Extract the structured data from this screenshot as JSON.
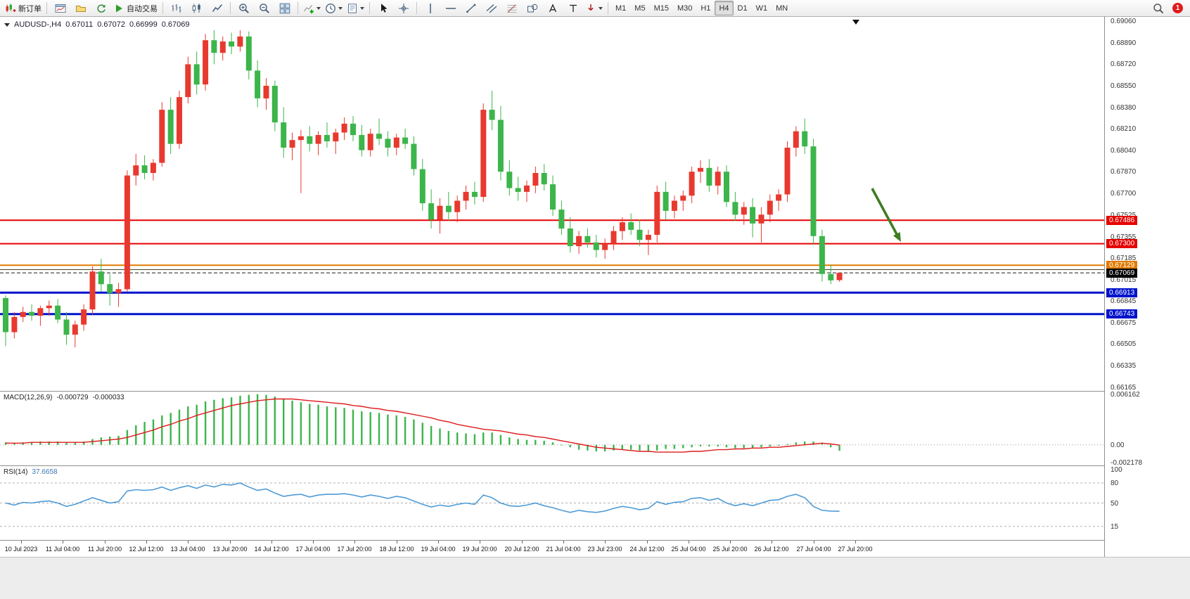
{
  "toolbar": {
    "groups": [
      {
        "buttons": [
          {
            "name": "new-order",
            "icon": "new-order",
            "label": "新订单"
          }
        ]
      },
      {
        "buttons": [
          {
            "name": "new-chart",
            "icon": "chart-window"
          },
          {
            "name": "profiles",
            "icon": "profile"
          },
          {
            "name": "refresh",
            "icon": "refresh"
          },
          {
            "name": "autotrade",
            "icon": "autotrade",
            "label": "自动交易"
          }
        ]
      },
      {
        "buttons": [
          {
            "name": "bar-chart",
            "icon": "bars"
          },
          {
            "name": "candle-chart",
            "icon": "candles"
          },
          {
            "name": "line-chart",
            "icon": "line-chart"
          }
        ]
      },
      {
        "buttons": [
          {
            "name": "zoom-in",
            "icon": "zoom-in"
          },
          {
            "name": "zoom-out",
            "icon": "zoom-out"
          },
          {
            "name": "tile-windows",
            "icon": "tile"
          }
        ]
      },
      {
        "buttons": [
          {
            "name": "indicators",
            "icon": "indicators",
            "caret": true
          },
          {
            "name": "periods",
            "icon": "clock",
            "caret": true
          },
          {
            "name": "templates",
            "icon": "template",
            "caret": true
          }
        ]
      },
      {
        "buttons": [
          {
            "name": "cursor",
            "icon": "cursor"
          },
          {
            "name": "crosshair",
            "icon": "crosshair"
          }
        ]
      },
      {
        "buttons": [
          {
            "name": "vertical-line",
            "icon": "vline"
          },
          {
            "name": "horizontal-line",
            "icon": "hline"
          },
          {
            "name": "trendline",
            "icon": "trendline"
          },
          {
            "name": "equidistant-channel",
            "icon": "channel"
          },
          {
            "name": "fibonacci",
            "icon": "fibo"
          },
          {
            "name": "shapes",
            "icon": "shapes"
          },
          {
            "name": "text",
            "icon": "text-a"
          },
          {
            "name": "text-label",
            "icon": "label-t"
          },
          {
            "name": "arrows",
            "icon": "arrows-tool",
            "caret": true
          }
        ]
      }
    ],
    "timeframes": [
      {
        "label": "M1"
      },
      {
        "label": "M5"
      },
      {
        "label": "M15"
      },
      {
        "label": "M30"
      },
      {
        "label": "H1"
      },
      {
        "label": "H4",
        "active": true
      },
      {
        "label": "D1"
      },
      {
        "label": "W1"
      },
      {
        "label": "MN"
      }
    ],
    "right": [
      {
        "name": "search",
        "icon": "search"
      },
      {
        "name": "alerts",
        "badge": "1"
      }
    ]
  },
  "chart": {
    "symbol_period": "AUDUSD-,H4",
    "open": "0.67011",
    "high": "0.67072",
    "low": "0.66999",
    "close": "0.67069",
    "price_axis_labels": [
      "0.69060",
      "0.68890",
      "0.68720",
      "0.68550",
      "0.68380",
      "0.68210",
      "0.68040",
      "0.67870",
      "0.67700",
      "0.67525",
      "0.67355",
      "0.67185",
      "0.67015",
      "0.66845",
      "0.66675",
      "0.66505",
      "0.66335",
      "0.66165"
    ],
    "hlines": [
      {
        "value": 0.67486,
        "badge": "0.67486",
        "color": "#e60000",
        "width": 2,
        "dash": false
      },
      {
        "value": 0.673,
        "badge": "0.67300",
        "color": "#e60000",
        "width": 2,
        "dash": false
      },
      {
        "value": 0.67129,
        "badge": "0.67129",
        "color": "#e07b00",
        "width": 2,
        "dash": false
      },
      {
        "value": 0.67095,
        "badge": null,
        "color": "#44442a",
        "width": 1,
        "dash": false
      },
      {
        "value": 0.67069,
        "badge": "0.67069",
        "color": "#1a1a1a",
        "width": 1,
        "dash": true
      },
      {
        "value": 0.66913,
        "badge": "0.66913",
        "color": "#0013cc",
        "width": 3,
        "dash": false
      },
      {
        "value": 0.66743,
        "badge": "0.66743",
        "color": "#0013cc",
        "width": 3,
        "dash": false
      }
    ],
    "arrow_color": "#3f7d23"
  },
  "chart_data": {
    "type": "candlestick",
    "symbol": "AUDUSD",
    "period": "H4",
    "y_range": [
      0.66135,
      0.69095
    ],
    "bull_color": "#e8392f",
    "bear_color": "#3cb54a",
    "time_labels": [
      "10 Jul 2023",
      "11 Jul 04:00",
      "11 Jul 20:00",
      "12 Jul 12:00",
      "13 Jul 04:00",
      "13 Jul 20:00",
      "14 Jul 12:00",
      "17 Jul 04:00",
      "17 Jul 20:00",
      "18 Jul 12:00",
      "19 Jul 04:00",
      "19 Jul 20:00",
      "20 Jul 12:00",
      "21 Jul 04:00",
      "23 Jul 23:00",
      "24 Jul 12:00",
      "25 Jul 04:00",
      "25 Jul 20:00",
      "26 Jul 12:00",
      "27 Jul 04:00",
      "27 Jul 20:00"
    ],
    "candles": [
      [
        0.6687,
        0.6689,
        0.6649,
        0.666
      ],
      [
        0.666,
        0.6676,
        0.6655,
        0.6672
      ],
      [
        0.6672,
        0.668,
        0.6668,
        0.6676
      ],
      [
        0.6676,
        0.6682,
        0.6669,
        0.6673
      ],
      [
        0.6673,
        0.6681,
        0.6665,
        0.6679
      ],
      [
        0.6679,
        0.6685,
        0.6673,
        0.6681
      ],
      [
        0.6681,
        0.6686,
        0.6667,
        0.667
      ],
      [
        0.667,
        0.6676,
        0.665,
        0.6658
      ],
      [
        0.6658,
        0.6669,
        0.6648,
        0.6666
      ],
      [
        0.6666,
        0.6682,
        0.6661,
        0.6678
      ],
      [
        0.6678,
        0.6712,
        0.6674,
        0.6708
      ],
      [
        0.6708,
        0.6718,
        0.6692,
        0.6698
      ],
      [
        0.6698,
        0.6706,
        0.6681,
        0.6691
      ],
      [
        0.6691,
        0.6699,
        0.668,
        0.6694
      ],
      [
        0.6694,
        0.6788,
        0.6692,
        0.6784
      ],
      [
        0.6784,
        0.6801,
        0.6776,
        0.6792
      ],
      [
        0.6792,
        0.68,
        0.6781,
        0.6786
      ],
      [
        0.6786,
        0.6797,
        0.678,
        0.6794
      ],
      [
        0.6794,
        0.6842,
        0.6791,
        0.6836
      ],
      [
        0.6836,
        0.6846,
        0.6801,
        0.6809
      ],
      [
        0.6809,
        0.6851,
        0.6805,
        0.6846
      ],
      [
        0.6846,
        0.6878,
        0.6841,
        0.6872
      ],
      [
        0.6872,
        0.6882,
        0.6848,
        0.6856
      ],
      [
        0.6856,
        0.6896,
        0.6851,
        0.6891
      ],
      [
        0.6891,
        0.6899,
        0.6872,
        0.6881
      ],
      [
        0.6881,
        0.6894,
        0.6875,
        0.689
      ],
      [
        0.689,
        0.6897,
        0.688,
        0.6886
      ],
      [
        0.6886,
        0.6899,
        0.6882,
        0.6894
      ],
      [
        0.6894,
        0.6898,
        0.686,
        0.6867
      ],
      [
        0.6867,
        0.6875,
        0.6838,
        0.6845
      ],
      [
        0.6845,
        0.6861,
        0.6836,
        0.6855
      ],
      [
        0.6855,
        0.6859,
        0.6819,
        0.6826
      ],
      [
        0.6826,
        0.6838,
        0.6798,
        0.6806
      ],
      [
        0.6806,
        0.6818,
        0.6796,
        0.6812
      ],
      [
        0.6812,
        0.682,
        0.677,
        0.6815
      ],
      [
        0.6815,
        0.6823,
        0.6803,
        0.6809
      ],
      [
        0.6809,
        0.6819,
        0.68,
        0.6816
      ],
      [
        0.6816,
        0.6826,
        0.6806,
        0.6811
      ],
      [
        0.6811,
        0.6821,
        0.6801,
        0.6818
      ],
      [
        0.6818,
        0.683,
        0.6812,
        0.6825
      ],
      [
        0.6825,
        0.6831,
        0.6811,
        0.6816
      ],
      [
        0.6816,
        0.6824,
        0.6799,
        0.6804
      ],
      [
        0.6804,
        0.6821,
        0.6799,
        0.6817
      ],
      [
        0.6817,
        0.6829,
        0.6808,
        0.6813
      ],
      [
        0.6813,
        0.6819,
        0.6799,
        0.6806
      ],
      [
        0.6806,
        0.6817,
        0.68,
        0.6814
      ],
      [
        0.6814,
        0.6821,
        0.6805,
        0.6809
      ],
      [
        0.6809,
        0.6815,
        0.6784,
        0.6789
      ],
      [
        0.6789,
        0.6797,
        0.6756,
        0.6762
      ],
      [
        0.6762,
        0.6773,
        0.6742,
        0.6749
      ],
      [
        0.6749,
        0.6766,
        0.6738,
        0.676
      ],
      [
        0.676,
        0.6771,
        0.6748,
        0.6755
      ],
      [
        0.6755,
        0.6768,
        0.6747,
        0.6764
      ],
      [
        0.6764,
        0.6776,
        0.6757,
        0.6771
      ],
      [
        0.6771,
        0.6779,
        0.6761,
        0.6767
      ],
      [
        0.6767,
        0.6841,
        0.6763,
        0.6836
      ],
      [
        0.6836,
        0.6851,
        0.682,
        0.6828
      ],
      [
        0.6828,
        0.6839,
        0.678,
        0.6787
      ],
      [
        0.6787,
        0.6796,
        0.6768,
        0.6774
      ],
      [
        0.6774,
        0.6783,
        0.6764,
        0.6771
      ],
      [
        0.6771,
        0.678,
        0.6763,
        0.6776
      ],
      [
        0.6776,
        0.6791,
        0.677,
        0.6786
      ],
      [
        0.6786,
        0.6793,
        0.6772,
        0.6777
      ],
      [
        0.6777,
        0.6784,
        0.6752,
        0.6757
      ],
      [
        0.6757,
        0.6764,
        0.6737,
        0.6742
      ],
      [
        0.6742,
        0.6751,
        0.6723,
        0.6728
      ],
      [
        0.6728,
        0.674,
        0.6722,
        0.6736
      ],
      [
        0.6736,
        0.6742,
        0.6727,
        0.6731
      ],
      [
        0.6731,
        0.6737,
        0.6719,
        0.6725
      ],
      [
        0.6725,
        0.6734,
        0.6718,
        0.673
      ],
      [
        0.673,
        0.6744,
        0.6725,
        0.674
      ],
      [
        0.674,
        0.6751,
        0.6733,
        0.6747
      ],
      [
        0.6747,
        0.6754,
        0.6737,
        0.6741
      ],
      [
        0.6741,
        0.6749,
        0.6728,
        0.6733
      ],
      [
        0.6733,
        0.6741,
        0.6721,
        0.6737
      ],
      [
        0.6737,
        0.6776,
        0.6731,
        0.6771
      ],
      [
        0.6771,
        0.6779,
        0.6749,
        0.6756
      ],
      [
        0.6756,
        0.6768,
        0.675,
        0.6764
      ],
      [
        0.6764,
        0.6772,
        0.6756,
        0.6768
      ],
      [
        0.6768,
        0.6791,
        0.6762,
        0.6787
      ],
      [
        0.6787,
        0.6796,
        0.6778,
        0.679
      ],
      [
        0.679,
        0.6797,
        0.6771,
        0.6776
      ],
      [
        0.6776,
        0.6791,
        0.6769,
        0.6787
      ],
      [
        0.6787,
        0.6792,
        0.6759,
        0.6763
      ],
      [
        0.6763,
        0.6771,
        0.6748,
        0.6753
      ],
      [
        0.6753,
        0.6763,
        0.6745,
        0.6759
      ],
      [
        0.6759,
        0.6766,
        0.6735,
        0.6746
      ],
      [
        0.6746,
        0.6759,
        0.6731,
        0.6753
      ],
      [
        0.6753,
        0.6769,
        0.6747,
        0.6764
      ],
      [
        0.6764,
        0.6773,
        0.6756,
        0.6769
      ],
      [
        0.6769,
        0.6811,
        0.6763,
        0.6806
      ],
      [
        0.6806,
        0.6823,
        0.6799,
        0.6819
      ],
      [
        0.6819,
        0.6829,
        0.6801,
        0.6807
      ],
      [
        0.6807,
        0.6813,
        0.6729,
        0.6736
      ],
      [
        0.6736,
        0.6741,
        0.67,
        0.6706
      ],
      [
        0.6706,
        0.6713,
        0.6698,
        0.6701
      ],
      [
        0.67011,
        0.67072,
        0.66999,
        0.67069
      ]
    ]
  },
  "macd": {
    "label": "MACD(12,26,9)",
    "value": "-0.000729",
    "signal_value": "-0.000033",
    "scale_max": "0.006162",
    "scale_zero": "0.00",
    "scale_min": "-0.002178",
    "histogram_color": "#3cb54a",
    "signal_color": "#dd1c1c",
    "range": [
      -0.002178,
      0.006162
    ],
    "histogram": [
      0.0003,
      0.0002,
      0.0003,
      0.0003,
      0.0004,
      0.0004,
      0.0004,
      0.0003,
      0.0003,
      0.0004,
      0.0007,
      0.0009,
      0.001,
      0.0011,
      0.0018,
      0.0024,
      0.0028,
      0.0031,
      0.0036,
      0.0039,
      0.0043,
      0.0047,
      0.0049,
      0.0053,
      0.0055,
      0.0057,
      0.0058,
      0.006,
      0.0061,
      0.0062,
      0.0061,
      0.0059,
      0.0056,
      0.0054,
      0.0052,
      0.005,
      0.0049,
      0.0047,
      0.0046,
      0.0045,
      0.0043,
      0.0041,
      0.004,
      0.0039,
      0.0037,
      0.0036,
      0.0034,
      0.0031,
      0.0027,
      0.0023,
      0.002,
      0.0017,
      0.0015,
      0.0014,
      0.0013,
      0.0015,
      0.0015,
      0.0012,
      0.0009,
      0.0007,
      0.0006,
      0.0006,
      0.0005,
      0.0003,
      0.0,
      -0.0003,
      -0.0006,
      -0.0007,
      -0.0008,
      -0.0008,
      -0.0007,
      -0.0006,
      -0.0006,
      -0.0007,
      -0.0008,
      -0.0007,
      -0.0005,
      -0.0005,
      -0.0004,
      -0.0003,
      -0.0002,
      -0.0002,
      -0.0002,
      -0.0003,
      -0.0004,
      -0.0004,
      -0.0004,
      -0.0003,
      -0.0002,
      -0.0001,
      0.0001,
      0.0003,
      0.0004,
      0.0004,
      0.0002,
      -0.0003,
      -0.000729
    ],
    "signal_line": [
      0.0002,
      0.0002,
      0.0002,
      0.0003,
      0.0003,
      0.0003,
      0.0003,
      0.0003,
      0.0003,
      0.0003,
      0.0004,
      0.0005,
      0.0006,
      0.0007,
      0.0009,
      0.0012,
      0.0015,
      0.0018,
      0.0022,
      0.0025,
      0.0029,
      0.0032,
      0.0036,
      0.0039,
      0.0042,
      0.0045,
      0.0048,
      0.005,
      0.0052,
      0.0054,
      0.0055,
      0.0056,
      0.0056,
      0.0056,
      0.0055,
      0.0054,
      0.0053,
      0.0052,
      0.0051,
      0.005,
      0.0048,
      0.0047,
      0.0045,
      0.0044,
      0.0042,
      0.0041,
      0.0039,
      0.0037,
      0.0035,
      0.0033,
      0.003,
      0.0028,
      0.0025,
      0.0023,
      0.0021,
      0.0019,
      0.0018,
      0.0017,
      0.0015,
      0.0013,
      0.0012,
      0.001,
      0.0009,
      0.0007,
      0.0005,
      0.0003,
      0.0001,
      -0.0001,
      -0.0003,
      -0.0004,
      -0.0005,
      -0.0006,
      -0.0007,
      -0.0008,
      -0.0008,
      -0.0009,
      -0.0009,
      -0.0009,
      -0.0009,
      -0.0008,
      -0.0008,
      -0.0007,
      -0.0006,
      -0.0006,
      -0.0005,
      -0.0005,
      -0.0004,
      -0.0004,
      -0.0003,
      -0.0003,
      -0.0002,
      -0.0001,
      0.0,
      0.0001,
      0.0002,
      0.0001,
      -3.3e-05
    ]
  },
  "rsi": {
    "label": "RSI(14)",
    "value": "37.6658",
    "line_color": "#4f9bd6",
    "scale_labels": [
      "100",
      "80",
      "50",
      "15"
    ],
    "level_lines": [
      80,
      50,
      15
    ],
    "values": [
      50,
      47,
      51,
      50,
      52,
      53,
      50,
      45,
      48,
      53,
      58,
      54,
      50,
      52,
      68,
      70,
      69,
      70,
      74,
      69,
      73,
      76,
      72,
      77,
      74,
      78,
      77,
      80,
      74,
      69,
      71,
      65,
      60,
      62,
      63,
      59,
      62,
      63,
      63,
      64,
      62,
      59,
      62,
      60,
      57,
      60,
      58,
      53,
      48,
      44,
      47,
      45,
      48,
      50,
      48,
      62,
      58,
      50,
      46,
      45,
      47,
      50,
      46,
      43,
      39,
      36,
      39,
      37,
      36,
      38,
      42,
      45,
      43,
      40,
      42,
      52,
      48,
      51,
      52,
      57,
      58,
      54,
      57,
      50,
      46,
      49,
      46,
      50,
      54,
      55,
      60,
      63,
      58,
      45,
      39,
      38,
      37.6658
    ]
  }
}
